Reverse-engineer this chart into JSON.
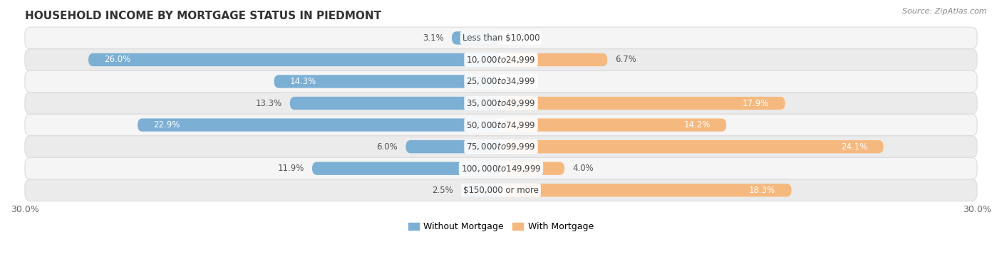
{
  "title": "HOUSEHOLD INCOME BY MORTGAGE STATUS IN PIEDMONT",
  "source": "Source: ZipAtlas.com",
  "categories": [
    "Less than $10,000",
    "$10,000 to $24,999",
    "$25,000 to $34,999",
    "$35,000 to $49,999",
    "$50,000 to $74,999",
    "$75,000 to $99,999",
    "$100,000 to $149,999",
    "$150,000 or more"
  ],
  "without_mortgage": [
    3.1,
    26.0,
    14.3,
    13.3,
    22.9,
    6.0,
    11.9,
    2.5
  ],
  "with_mortgage": [
    0.0,
    6.7,
    0.0,
    17.9,
    14.2,
    24.1,
    4.0,
    18.3
  ],
  "color_without": "#7BAFD4",
  "color_with": "#F5B97F",
  "xlim": [
    -30,
    30
  ],
  "legend_labels": [
    "Without Mortgage",
    "With Mortgage"
  ],
  "bar_height": 0.6,
  "row_bg_light": "#f5f5f5",
  "row_bg_dark": "#ebebeb",
  "row_separator": "#dcdcdc",
  "label_inside_color": "#ffffff",
  "label_outside_color": "#555555",
  "cat_label_fontsize": 8.5,
  "pct_label_fontsize": 8.5,
  "title_fontsize": 11,
  "source_fontsize": 8,
  "legend_fontsize": 9,
  "inside_threshold": 14
}
